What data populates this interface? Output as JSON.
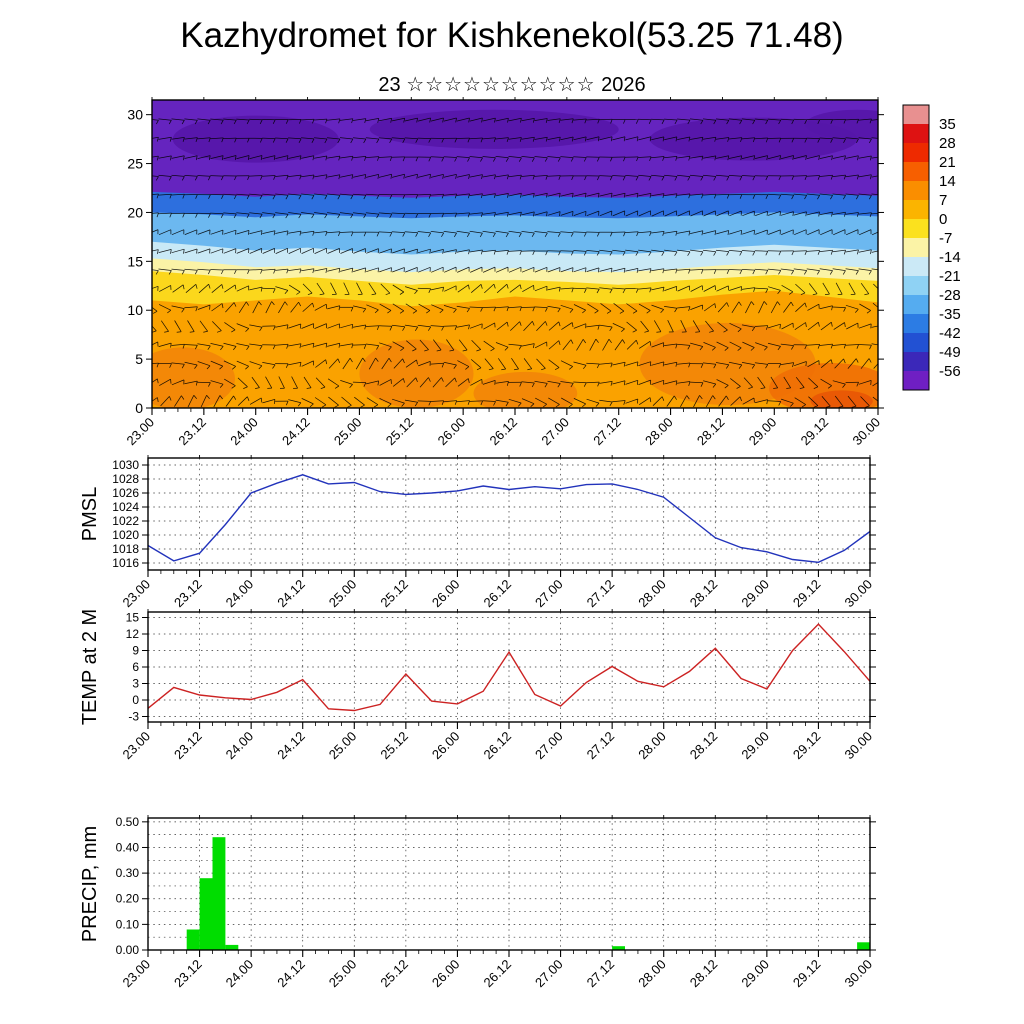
{
  "title": "Kazhydromet for Kishkenekol(53.25 71.48)",
  "subtitle": {
    "day": "23",
    "stars": "☆☆☆☆☆☆☆☆☆☆",
    "year": "2026"
  },
  "time_labels": [
    "23.00",
    "23.12",
    "24.00",
    "24.12",
    "25.00",
    "25.12",
    "26.00",
    "26.12",
    "27.00",
    "27.12",
    "28.00",
    "28.12",
    "29.00",
    "29.12",
    "30.00"
  ],
  "chart_data": [
    {
      "id": "cross_section",
      "type": "heatmap",
      "title": "Time-height cross-section of temperature (shaded) with wind barbs",
      "x_range_days": [
        0,
        7
      ],
      "ylim": [
        0,
        30
      ],
      "yticks": [
        0,
        5,
        10,
        15,
        20,
        25,
        30
      ],
      "t": [
        0,
        0.5,
        1,
        1.5,
        2,
        2.5,
        3,
        3.5,
        4,
        4.5,
        5,
        5.5,
        6,
        6.5,
        7
      ],
      "bands": [
        {
          "name": "purple-top",
          "color": "#6524BF",
          "top_level": null
        },
        {
          "name": "blue",
          "color": "#2D6FDE",
          "top_level": [
            22.1,
            21.9,
            21.6,
            21.9,
            21.7,
            21.5,
            21.7,
            21.8,
            21.6,
            21.5,
            21.7,
            21.9,
            22.1,
            21.9,
            21.7
          ]
        },
        {
          "name": "light-blue",
          "color": "#6CB8F0",
          "top_level": [
            20,
            19.8,
            19.5,
            19.8,
            19.6,
            19.4,
            19.6,
            19.7,
            19.5,
            19.4,
            19.6,
            19.8,
            20,
            19.8,
            19.6
          ]
        },
        {
          "name": "pale-blue",
          "color": "#C9E9F6",
          "top_level": [
            17,
            16.6,
            16.1,
            16.4,
            16,
            15.7,
            16,
            16.1,
            15.8,
            15.7,
            16,
            16.4,
            16.7,
            16.4,
            16.1
          ]
        },
        {
          "name": "pale-yellow",
          "color": "#FBF3A6",
          "top_level": [
            15.3,
            14.9,
            14.4,
            14.6,
            14.2,
            13.9,
            14.2,
            14.3,
            14,
            13.9,
            14.2,
            14.6,
            14.9,
            14.6,
            14.3
          ]
        },
        {
          "name": "yellow",
          "color": "#FBD71C",
          "top_level": [
            14,
            13.6,
            13.1,
            13.4,
            13,
            12.6,
            13,
            13.1,
            12.9,
            12.6,
            13,
            13.3,
            13.6,
            13.3,
            13
          ]
        },
        {
          "name": "orange",
          "color": "#FAA200",
          "top_level": [
            11,
            10.6,
            11,
            11.4,
            11,
            10.4,
            10.8,
            11.4,
            11,
            10.6,
            11,
            11.6,
            12,
            11.4,
            10.8
          ]
        }
      ],
      "patches": [
        {
          "t": 0.3,
          "level": 3,
          "rt": 0.5,
          "rl": 3.2,
          "color": "#F28508"
        },
        {
          "t": 2.55,
          "level": 3.5,
          "rt": 0.55,
          "rl": 3.5,
          "color": "#F28508"
        },
        {
          "t": 3.6,
          "level": 1.5,
          "rt": 0.5,
          "rl": 2.2,
          "color": "#F28508"
        },
        {
          "t": 5.55,
          "level": 4.5,
          "rt": 0.85,
          "rl": 4.2,
          "color": "#F28508"
        },
        {
          "t": 6.55,
          "level": 2,
          "rt": 0.6,
          "rl": 2.6,
          "color": "#EF6F06"
        },
        {
          "t": 6.65,
          "level": 0.7,
          "rt": 0.3,
          "rl": 1.1,
          "color": "#E85606"
        },
        {
          "t": 1.0,
          "level": 27.5,
          "rt": 0.8,
          "rl": 2.4,
          "color": "#5516A8"
        },
        {
          "t": 3.3,
          "level": 28.5,
          "rt": 1.2,
          "rl": 2.0,
          "color": "#5516A8"
        },
        {
          "t": 5.8,
          "level": 27.5,
          "rt": 1.0,
          "rl": 2.2,
          "color": "#5516A8"
        },
        {
          "t": 6.8,
          "level": 29,
          "rt": 0.5,
          "rl": 1.5,
          "color": "#5516A8"
        }
      ],
      "colorbar": {
        "ticks": [
          35,
          28,
          21,
          14,
          7,
          0,
          -7,
          -14,
          -21,
          -28,
          -35,
          -42,
          -49,
          -56
        ],
        "colors": [
          "#E89090",
          "#DE1212",
          "#EE2A00",
          "#F75F00",
          "#FA8E00",
          "#FBB400",
          "#FBE11E",
          "#FBF3A6",
          "#CBE9F6",
          "#8FD2F4",
          "#55ACF0",
          "#2C7CE4",
          "#2251D3",
          "#3B28B9",
          "#6F1FC3"
        ]
      }
    },
    {
      "id": "pmsl",
      "type": "line",
      "ylabel": "PMSL",
      "color": "#2233BB",
      "ylim": [
        1016,
        1030
      ],
      "yticks": [
        1016,
        1018,
        1020,
        1022,
        1024,
        1026,
        1028,
        1030
      ],
      "t_start": 0,
      "t_step": 0.25,
      "values": [
        1018.5,
        1016.3,
        1017.4,
        1021.5,
        1026.0,
        1027.4,
        1028.6,
        1027.3,
        1027.5,
        1026.2,
        1025.8,
        1026.0,
        1026.3,
        1027.0,
        1026.5,
        1026.9,
        1026.6,
        1027.2,
        1027.3,
        1026.5,
        1025.4,
        1022.5,
        1019.6,
        1018.2,
        1017.6,
        1016.5,
        1016.1,
        1017.8,
        1020.5
      ]
    },
    {
      "id": "temp2m",
      "type": "line",
      "ylabel": "TEMP at 2 M",
      "color": "#CC2222",
      "ylim": [
        -3,
        15
      ],
      "yticks": [
        -3,
        0,
        3,
        6,
        9,
        12,
        15
      ],
      "t_start": 0,
      "t_step": 0.25,
      "values": [
        -1.5,
        2.3,
        0.9,
        0.4,
        0.1,
        1.4,
        3.7,
        -1.6,
        -1.9,
        -0.8,
        4.7,
        -0.2,
        -0.7,
        1.6,
        8.7,
        1.0,
        -1.1,
        3.2,
        6.1,
        3.4,
        2.4,
        5.2,
        9.4,
        3.9,
        2.0,
        9.0,
        13.8,
        8.8,
        3.4
      ]
    },
    {
      "id": "precip",
      "type": "bar",
      "ylabel": "PRECIP, mm",
      "color": "#00DD00",
      "ylim": [
        0,
        0.5
      ],
      "ytick_labels": [
        "0.00",
        "0.10",
        "0.20",
        "0.30",
        "0.40",
        "0.50"
      ],
      "bar_width_days": 0.125,
      "bars": [
        {
          "t": 0.375,
          "v": 0.08
        },
        {
          "t": 0.5,
          "v": 0.28
        },
        {
          "t": 0.625,
          "v": 0.44
        },
        {
          "t": 0.75,
          "v": 0.02
        },
        {
          "t": 4.5,
          "v": 0.015
        },
        {
          "t": 6.875,
          "v": 0.03
        }
      ]
    }
  ]
}
